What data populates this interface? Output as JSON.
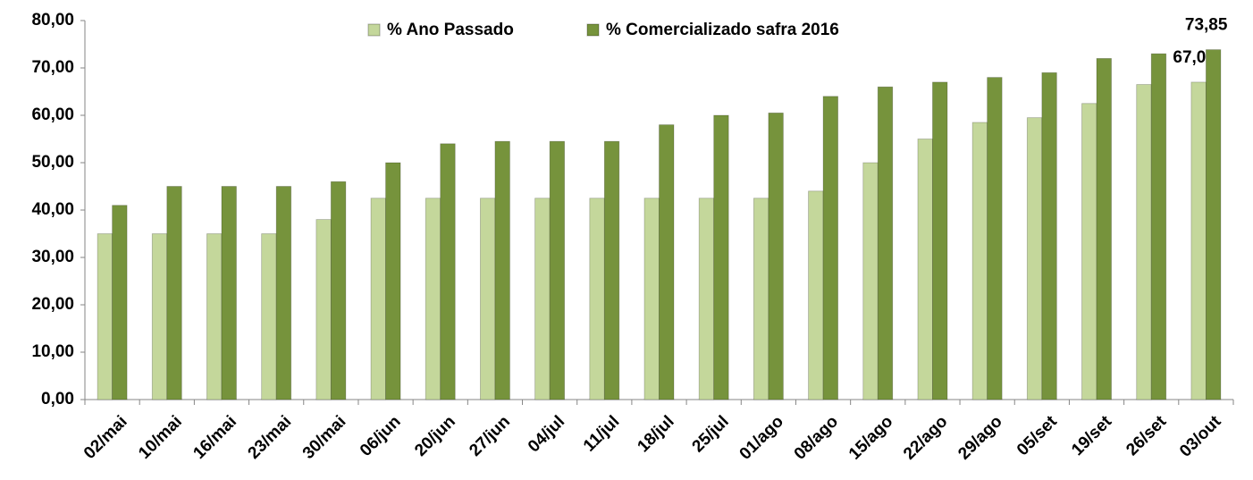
{
  "chart_data": {
    "type": "bar",
    "categories": [
      "02/mai",
      "10/mai",
      "16/mai",
      "23/mai",
      "30/mai",
      "06/jun",
      "20/jun",
      "27/jun",
      "04/jul",
      "11/jul",
      "18/jul",
      "25/jul",
      "01/ago",
      "08/ago",
      "15/ago",
      "22/ago",
      "29/ago",
      "05/set",
      "19/set",
      "26/set",
      "03/out"
    ],
    "series": [
      {
        "name": "% Ano Passado",
        "color": "#c4d79b",
        "values": [
          35,
          35,
          35,
          35,
          38,
          42.5,
          42.5,
          42.5,
          42.5,
          42.5,
          42.5,
          42.5,
          42.5,
          44,
          50,
          55,
          58.5,
          59.5,
          62.5,
          66.5,
          67
        ],
        "value_labels": [
          null,
          null,
          null,
          null,
          null,
          null,
          null,
          null,
          null,
          null,
          null,
          null,
          null,
          null,
          null,
          null,
          null,
          null,
          null,
          null,
          "67,00"
        ]
      },
      {
        "name": "% Comercializado safra 2016",
        "color": "#76933c",
        "values": [
          41,
          45,
          45,
          45,
          46,
          50,
          54,
          54.5,
          54.5,
          54.5,
          58,
          60,
          60.5,
          64,
          66,
          67,
          68,
          69,
          72,
          73,
          73.85
        ],
        "value_labels": [
          null,
          null,
          null,
          null,
          null,
          null,
          null,
          null,
          null,
          null,
          null,
          null,
          null,
          null,
          null,
          null,
          null,
          null,
          null,
          null,
          "73,85"
        ]
      }
    ],
    "ylim": [
      0,
      80
    ],
    "yticks": [
      {
        "value": 0,
        "label": "0,00"
      },
      {
        "value": 10,
        "label": "10,00"
      },
      {
        "value": 20,
        "label": "20,00"
      },
      {
        "value": 30,
        "label": "30,00"
      },
      {
        "value": 40,
        "label": "40,00"
      },
      {
        "value": 50,
        "label": "50,00"
      },
      {
        "value": 60,
        "label": "60,00"
      },
      {
        "value": 70,
        "label": "70,00"
      },
      {
        "value": 80,
        "label": "80,00"
      }
    ],
    "grid": false,
    "legend": "top"
  }
}
